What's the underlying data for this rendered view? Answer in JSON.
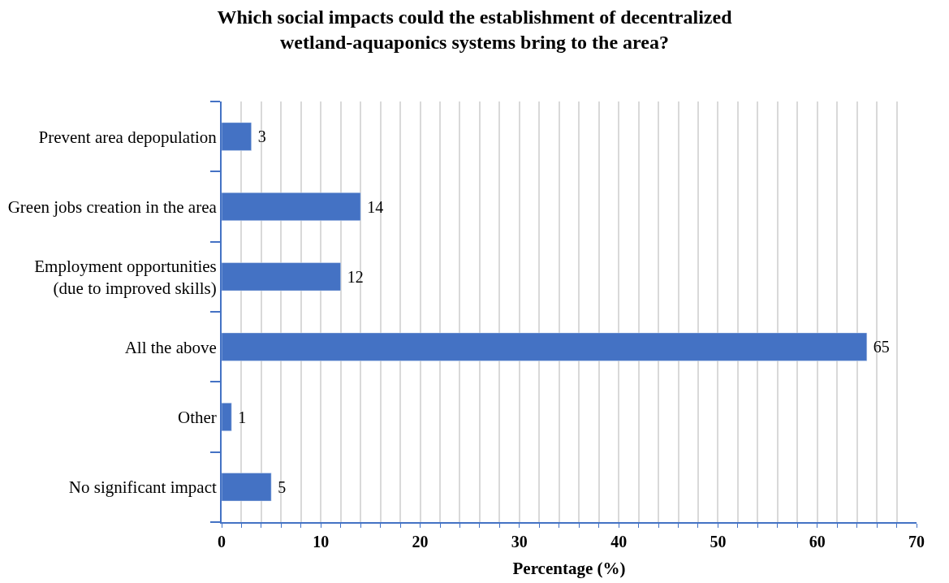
{
  "chart_data": {
    "type": "bar",
    "orientation": "horizontal",
    "title": "Which social impacts could the establishment of decentralized\nwetland-aquaponics systems bring to the area?",
    "xlabel": "Percentage (%)",
    "categories": [
      "Prevent area depopulation",
      "Green jobs creation in the area",
      "Employment opportunities\n(due to improved skills)",
      "All the above",
      "Other",
      "No significant impact"
    ],
    "values": [
      3,
      14,
      12,
      65,
      1,
      5
    ],
    "color": "#4472c4",
    "data_labels": true,
    "xlim": [
      0,
      70
    ],
    "xticks": [
      0,
      {
        "value": 2,
        "label": null
      },
      {
        "value": 4,
        "label": null
      },
      {
        "value": 6,
        "label": null
      },
      {
        "value": 8,
        "label": null
      },
      10,
      {
        "value": 12,
        "label": null
      },
      {
        "value": 14,
        "label": null
      },
      {
        "value": 16,
        "label": null
      },
      {
        "value": 18,
        "label": null
      },
      20,
      {
        "value": 22,
        "label": null
      },
      {
        "value": 24,
        "label": null
      },
      {
        "value": 26,
        "label": null
      },
      {
        "value": 28,
        "label": null
      },
      30,
      {
        "value": 32,
        "label": null
      },
      {
        "value": 34,
        "label": null
      },
      {
        "value": 36,
        "label": null
      },
      {
        "value": 38,
        "label": null
      },
      40,
      {
        "value": 42,
        "label": null
      },
      {
        "value": 44,
        "label": null
      },
      {
        "value": 46,
        "label": null
      },
      {
        "value": 48,
        "label": null
      },
      50,
      {
        "value": 52,
        "label": null
      },
      {
        "value": 54,
        "label": null
      },
      {
        "value": 56,
        "label": null
      },
      {
        "value": 58,
        "label": null
      },
      60,
      {
        "value": 62,
        "label": null
      },
      {
        "value": 64,
        "label": null
      },
      {
        "value": 66,
        "label": null
      },
      {
        "value": 68,
        "label": null
      },
      70
    ],
    "grid": "x"
  }
}
